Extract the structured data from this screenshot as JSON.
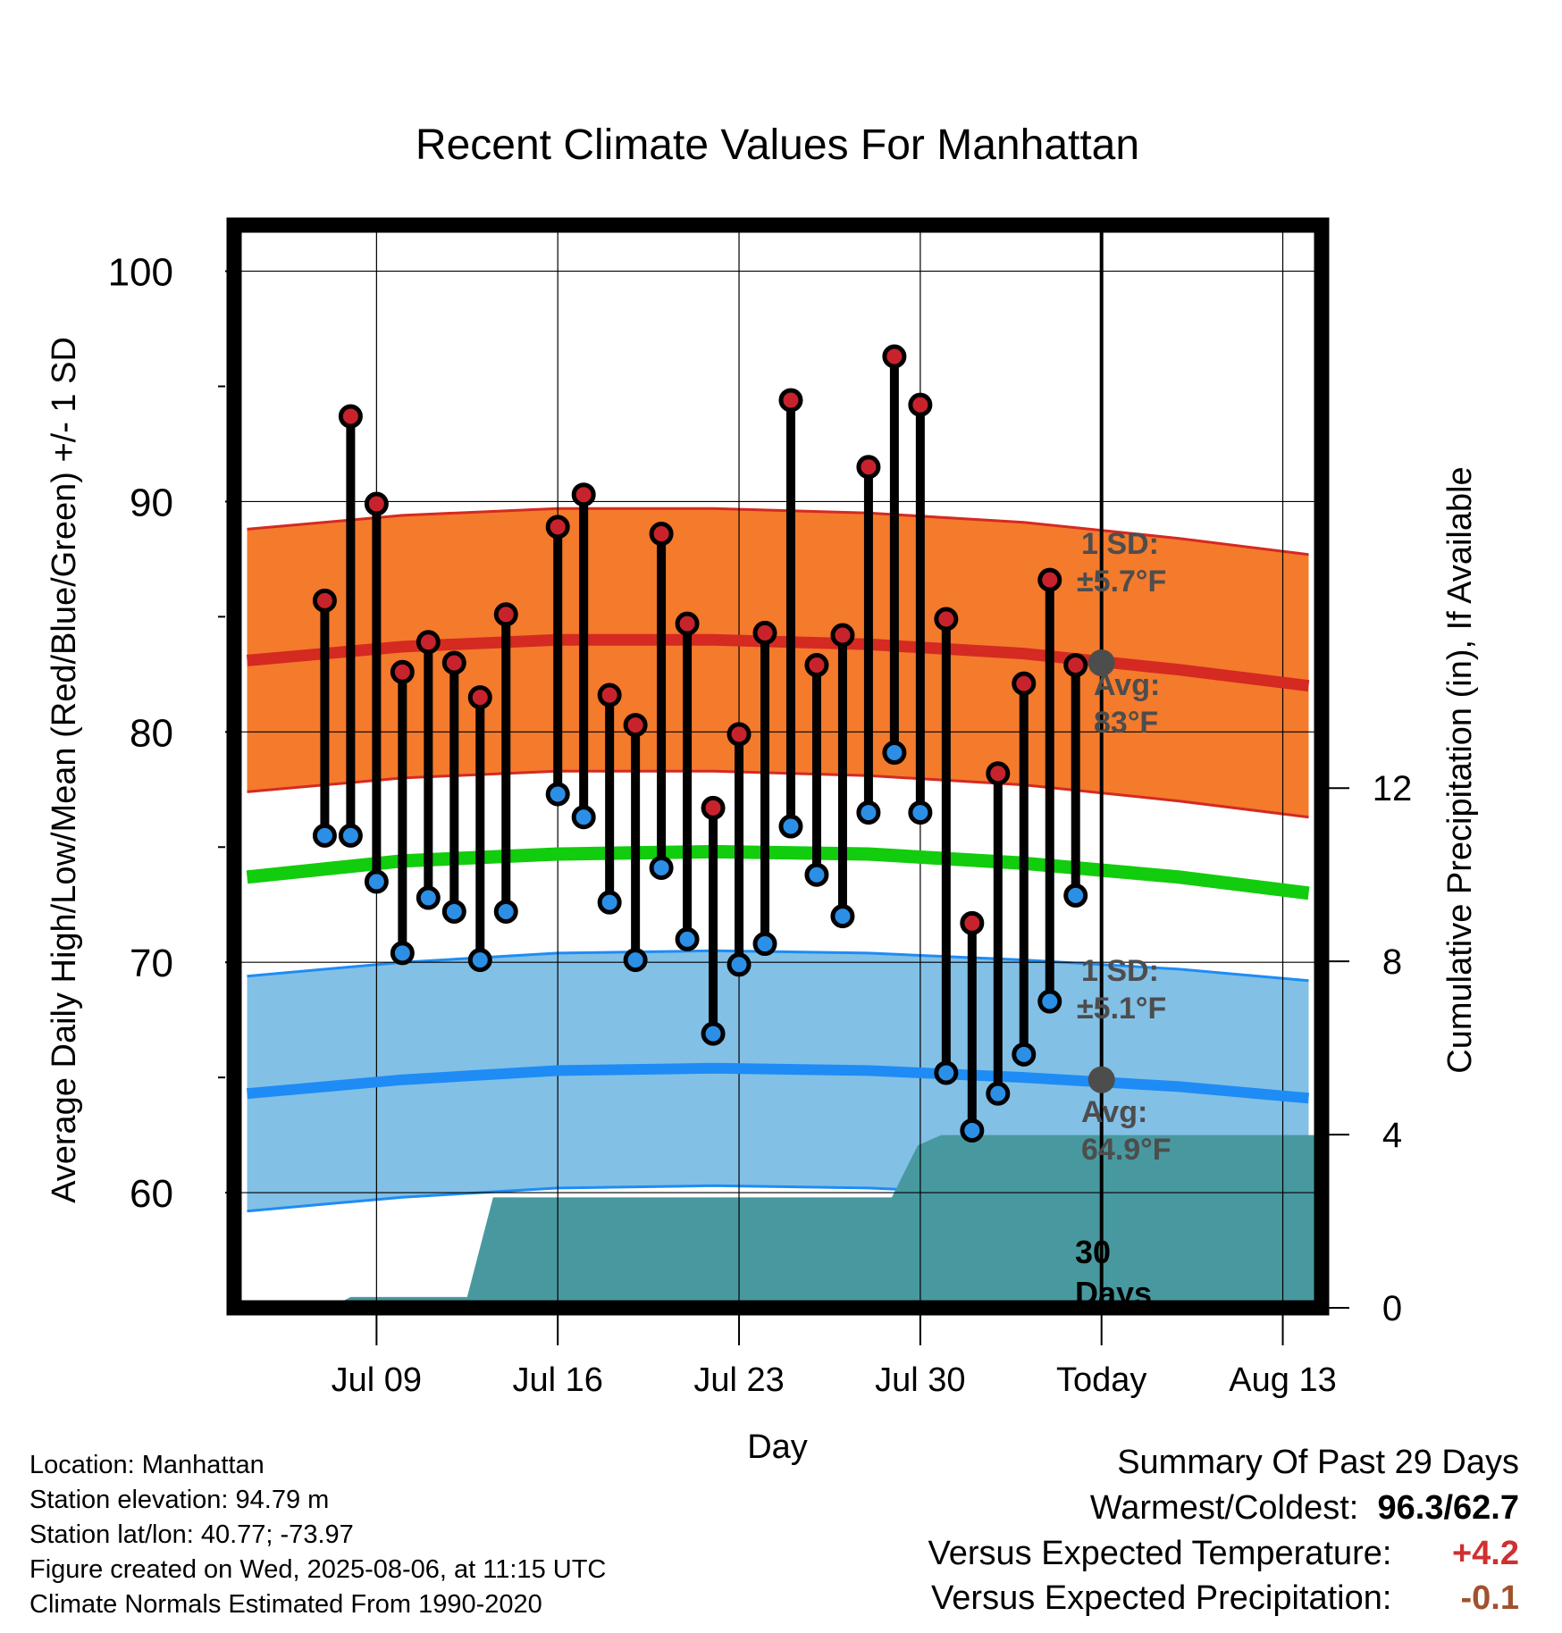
{
  "chart_data": {
    "type": "line",
    "title": "Recent Climate Values For Manhattan",
    "xlabel": "Day",
    "ylabel": "Average Daily High/Low/Mean (Red/Blue/Green) +/- 1 SD",
    "y2label": "Cumulative Precipitation (in), If Available",
    "ylim": [
      55,
      102
    ],
    "y2lim": [
      0,
      25
    ],
    "xlim": [
      -26.5,
      15.5
    ],
    "x_ticks": [
      {
        "day": -21,
        "label": "Jul 09"
      },
      {
        "day": -14,
        "label": "Jul 16"
      },
      {
        "day": -7,
        "label": "Jul 23"
      },
      {
        "day": 0,
        "label": "Jul 30"
      },
      {
        "day": 7,
        "label": "Today"
      },
      {
        "day": 14,
        "label": "Aug 13"
      }
    ],
    "y_ticks": [
      60,
      70,
      80,
      90,
      100
    ],
    "y2_ticks": [
      0,
      4,
      8,
      12
    ],
    "grid": true,
    "normals": {
      "x": [
        -26,
        -20,
        -14,
        -8,
        -2,
        4,
        10,
        15
      ],
      "high_avg": [
        83.1,
        83.7,
        84.0,
        84.0,
        83.8,
        83.4,
        82.7,
        82.0
      ],
      "high_sd": 5.7,
      "mean_avg": [
        73.7,
        74.4,
        74.7,
        74.8,
        74.7,
        74.3,
        73.7,
        73.0
      ],
      "low_avg": [
        64.3,
        64.9,
        65.3,
        65.4,
        65.3,
        65.0,
        64.6,
        64.1
      ],
      "low_sd": 5.1
    },
    "daily": {
      "x": [
        -23,
        -22,
        -21,
        -20,
        -19,
        -18,
        -17,
        -16,
        -14,
        -13,
        -12,
        -11,
        -10,
        -9,
        -8,
        -7,
        -6,
        -5,
        -4,
        -3,
        -2,
        -1,
        0,
        1,
        2,
        3,
        4,
        5,
        6
      ],
      "high": [
        85.7,
        93.7,
        89.9,
        82.6,
        83.9,
        83.0,
        81.5,
        85.1,
        88.9,
        90.3,
        81.6,
        80.3,
        88.6,
        84.7,
        76.7,
        79.9,
        84.3,
        94.4,
        82.9,
        84.2,
        91.5,
        96.3,
        94.2,
        84.9,
        71.7,
        78.2,
        82.1,
        86.6,
        82.9
      ],
      "low": [
        75.5,
        75.5,
        73.5,
        70.4,
        72.8,
        72.2,
        70.1,
        72.2,
        77.3,
        76.3,
        72.6,
        70.1,
        74.1,
        71.0,
        66.9,
        69.9,
        70.8,
        75.9,
        73.8,
        72.0,
        76.5,
        79.1,
        76.5,
        65.2,
        62.7,
        64.3,
        66.0,
        68.3,
        72.9
      ]
    },
    "precip": {
      "x": [
        -26.5,
        -22.8,
        -22,
        -18.5,
        -17.5,
        -16.5,
        -9,
        -1.1,
        -0.1,
        0.8,
        15.5
      ],
      "y": [
        0,
        0,
        0.25,
        0.25,
        0.25,
        2.55,
        2.55,
        2.55,
        3.75,
        3.99,
        3.99
      ]
    },
    "annotations": {
      "high_sd_label": "1 SD:",
      "high_sd_value": "±5.7°F",
      "high_avg_label": "Avg:",
      "high_avg_value": "83°F",
      "low_sd_label": "1 SD:",
      "low_sd_value": "±5.1°F",
      "low_avg_label": "Avg:",
      "low_avg_value": "64.9°F",
      "days_number": "30",
      "days_word": "Days"
    }
  },
  "info_lines": [
    "Location: Manhattan",
    "Station elevation: 94.79 m",
    "Station lat/lon: 40.77; -73.97",
    "Figure created on Wed, 2025-08-06, at 11:15 UTC",
    "Climate Normals Estimated From 1990-2020"
  ],
  "summary": {
    "title": "Summary Of Past 29 Days",
    "warm_cold_label": "Warmest/Coldest:",
    "warmest": "96.3",
    "coldest": "62.7",
    "temp_label": "Versus Expected Temperature:",
    "temp_value": "+4.2",
    "precip_label": "Versus Expected Precipitation:",
    "precip_value": "-0.1"
  },
  "colors": {
    "high_band": "#f47a2c",
    "high_line": "#d42a22",
    "mean_line": "#12cc0e",
    "low_band": "#82c0e6",
    "low_line": "#1e8cf4",
    "precip": "#48999f",
    "high_dot": "#c8232c",
    "low_dot": "#2b8fe6",
    "annotation": "#4d4d4d",
    "temp_value": "#d03030",
    "precip_value": "#a0522d"
  }
}
